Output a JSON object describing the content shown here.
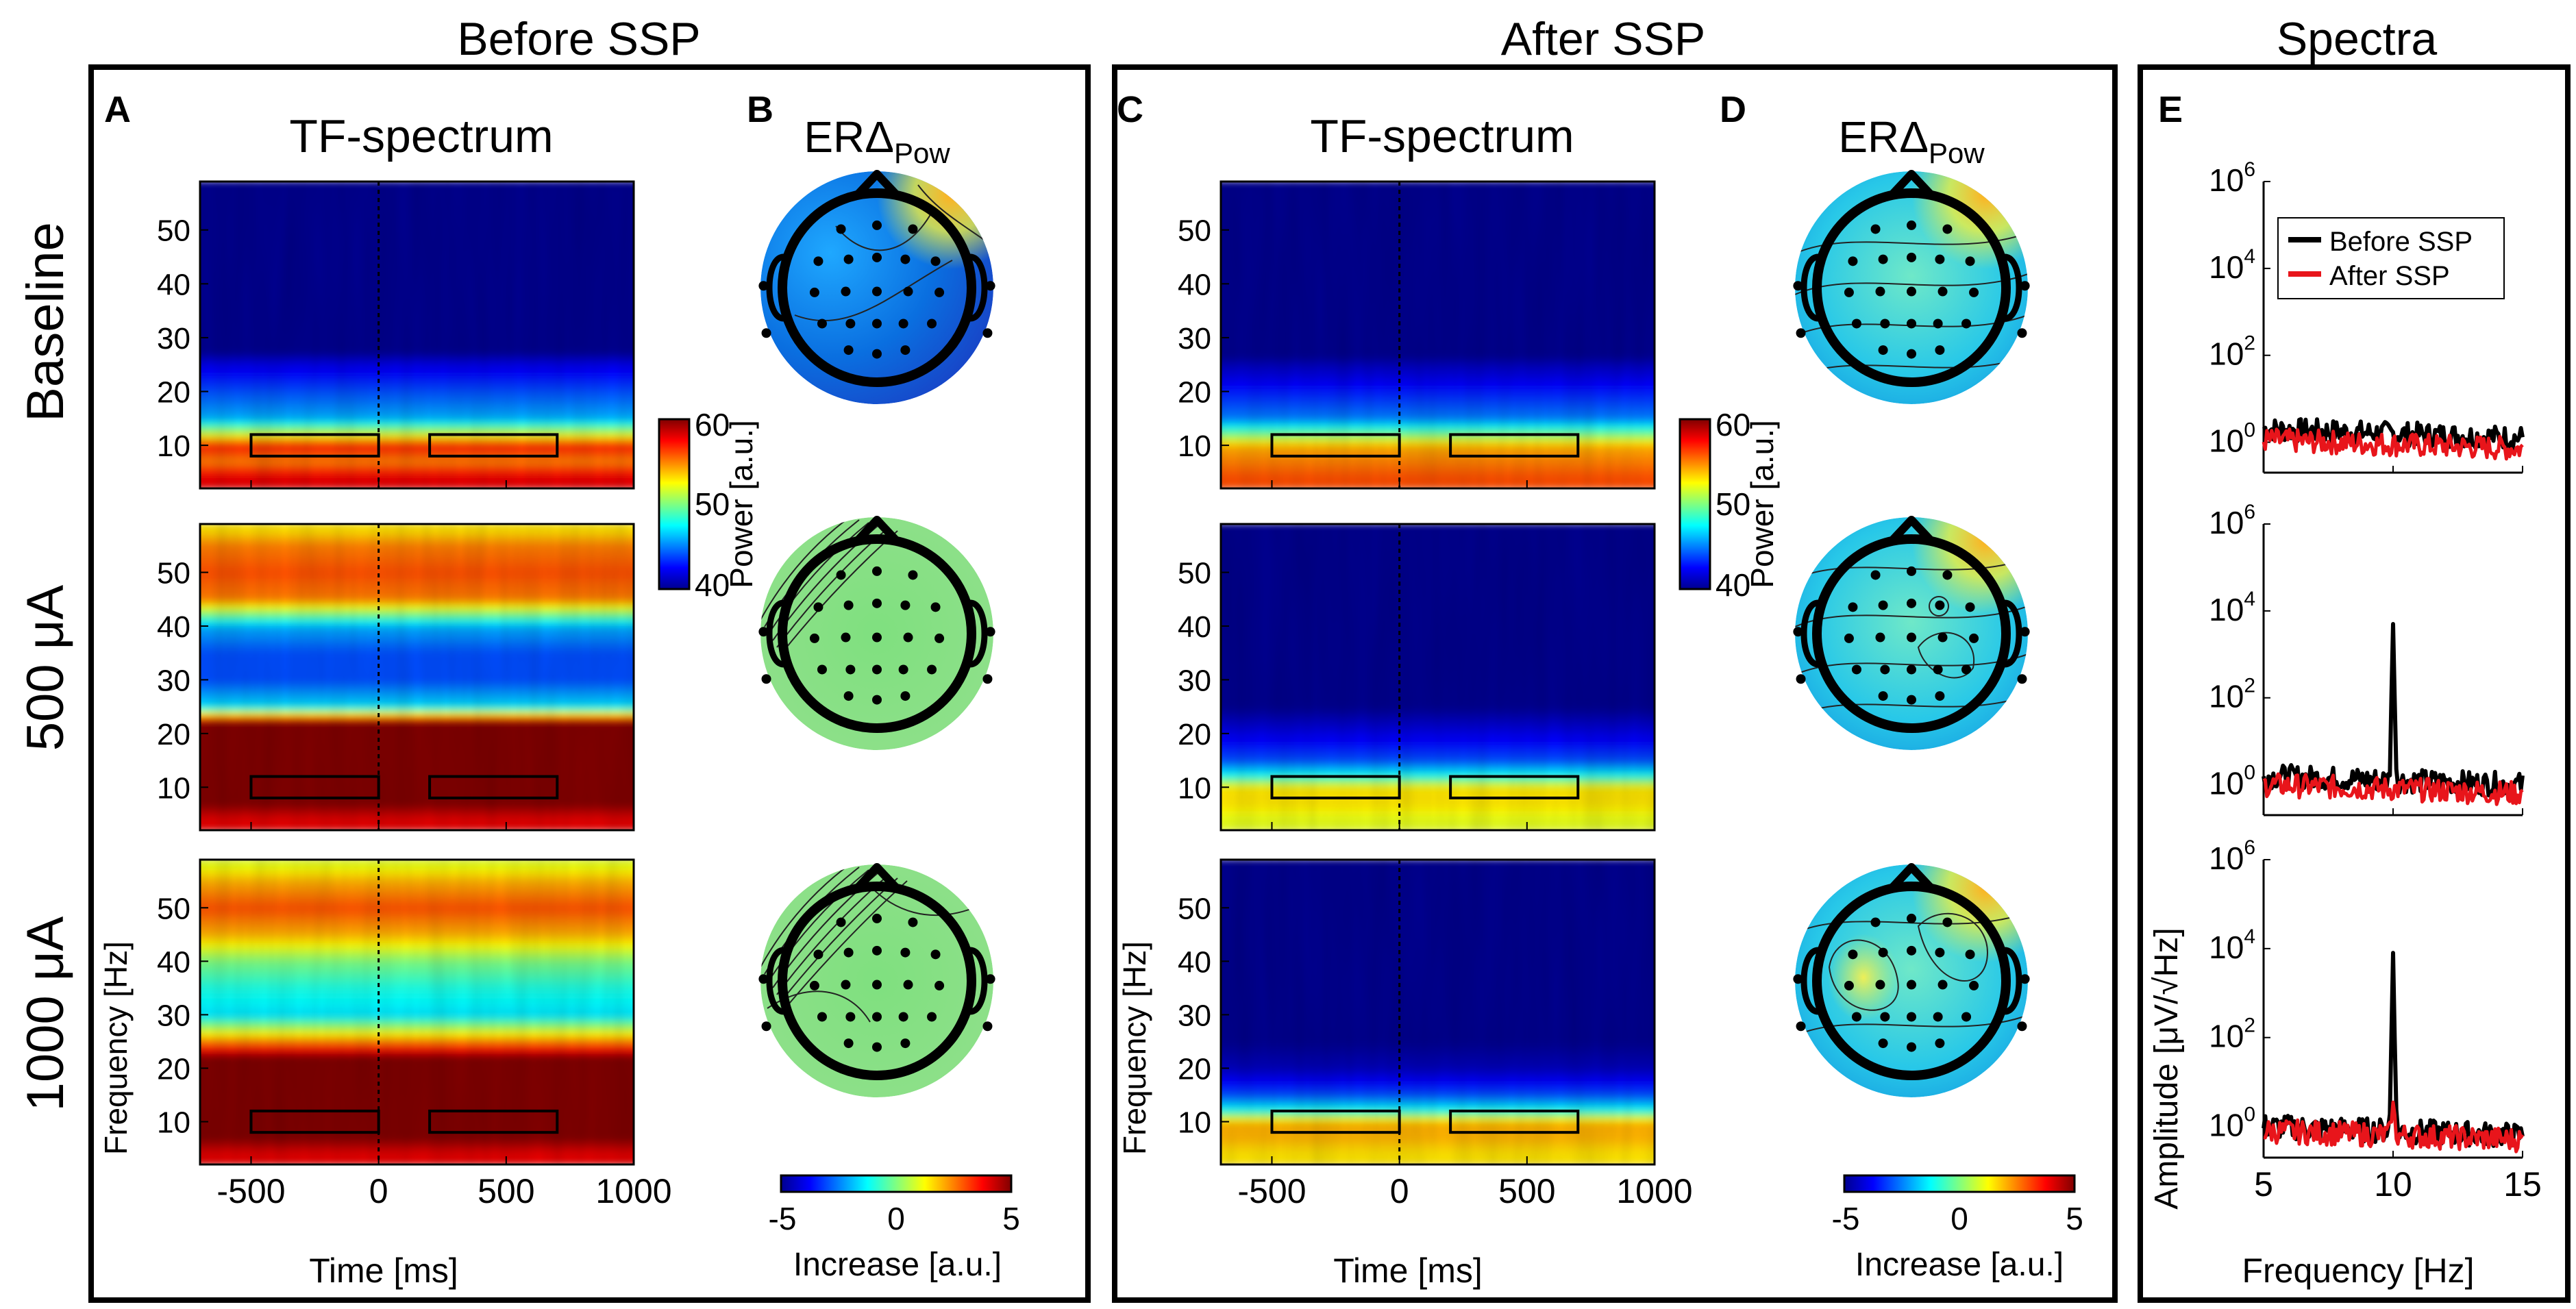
{
  "sections": {
    "before": "Before SSP",
    "after": "After SSP",
    "spectra": "Spectra"
  },
  "panels": {
    "A": "A",
    "B": "B",
    "C": "C",
    "D": "D",
    "E": "E"
  },
  "tf_title": "TF-spectrum",
  "erd_title": {
    "main": "ERΔ",
    "sub": "Pow"
  },
  "rows": [
    "Baseline",
    "500 μA",
    "1000 μA"
  ],
  "colors": {
    "frame": "#000000",
    "before_line": "#000000",
    "after_line": "#e8151b",
    "jet": [
      "#00008f",
      "#0000ff",
      "#0080ff",
      "#00ffff",
      "#80ff80",
      "#ffff00",
      "#ff8000",
      "#ff0000",
      "#800000"
    ]
  },
  "chart_data": [
    {
      "type": "heatmap",
      "title": "TF-spectrum",
      "panels": "A (Before SSP) and C (After SSP)",
      "xlabel": "Time [ms]",
      "ylabel": "Frequency [Hz]",
      "xlim": [
        -700,
        1000
      ],
      "ylim": [
        2,
        59
      ],
      "xticks": [
        -500,
        0,
        500,
        1000
      ],
      "xtick_labels": [
        "-500",
        "0",
        "500",
        "1000"
      ],
      "yticks": [
        10,
        20,
        30,
        40,
        50
      ],
      "ytick_labels": [
        "10",
        "20",
        "30",
        "40",
        "50"
      ],
      "event_marker_ms": 0,
      "analysis_windows_ms": [
        [
          -500,
          0
        ],
        [
          200,
          700
        ]
      ],
      "analysis_band_hz": [
        8,
        12
      ],
      "colorbar": {
        "label": "Power [a.u.]",
        "range": [
          40,
          60
        ],
        "ticks": [
          40,
          50,
          60
        ],
        "tick_labels": [
          "40",
          "50",
          "60"
        ]
      },
      "profiles_before": [
        [
          [
            4,
            58
          ],
          [
            7,
            55
          ],
          [
            10,
            57
          ],
          [
            12,
            52
          ],
          [
            15,
            46
          ],
          [
            20,
            44
          ],
          [
            25,
            42
          ],
          [
            30,
            38
          ],
          [
            35,
            35
          ],
          [
            40,
            33
          ],
          [
            50,
            31
          ],
          [
            58,
            30
          ]
        ],
        [
          [
            4,
            58
          ],
          [
            7,
            60
          ],
          [
            10,
            60
          ],
          [
            15,
            60
          ],
          [
            20,
            60
          ],
          [
            22,
            60
          ],
          [
            25,
            47
          ],
          [
            30,
            44
          ],
          [
            35,
            44
          ],
          [
            40,
            46
          ],
          [
            45,
            55
          ],
          [
            50,
            56
          ],
          [
            55,
            55
          ],
          [
            58,
            53
          ]
        ],
        [
          [
            4,
            58
          ],
          [
            7,
            60
          ],
          [
            10,
            60
          ],
          [
            15,
            60
          ],
          [
            20,
            60
          ],
          [
            22,
            60
          ],
          [
            25,
            55
          ],
          [
            30,
            47
          ],
          [
            35,
            48
          ],
          [
            40,
            50
          ],
          [
            45,
            54
          ],
          [
            50,
            56
          ],
          [
            55,
            54
          ],
          [
            58,
            52
          ]
        ]
      ],
      "profiles_after": [
        [
          [
            4,
            56
          ],
          [
            7,
            55
          ],
          [
            10,
            54
          ],
          [
            12,
            50
          ],
          [
            15,
            45
          ],
          [
            20,
            43
          ],
          [
            25,
            41
          ],
          [
            30,
            38
          ],
          [
            35,
            35
          ],
          [
            40,
            33
          ],
          [
            50,
            31
          ],
          [
            58,
            30
          ]
        ],
        [
          [
            4,
            52
          ],
          [
            7,
            53
          ],
          [
            10,
            53
          ],
          [
            12,
            48
          ],
          [
            15,
            44
          ],
          [
            20,
            42
          ],
          [
            25,
            40
          ],
          [
            30,
            38
          ],
          [
            35,
            37
          ],
          [
            40,
            36
          ],
          [
            50,
            36
          ],
          [
            58,
            36
          ]
        ],
        [
          [
            4,
            53
          ],
          [
            7,
            54
          ],
          [
            10,
            54
          ],
          [
            12,
            48
          ],
          [
            15,
            44
          ],
          [
            20,
            41
          ],
          [
            25,
            40
          ],
          [
            30,
            38
          ],
          [
            35,
            36
          ],
          [
            40,
            35
          ],
          [
            50,
            35
          ],
          [
            58,
            35
          ]
        ]
      ]
    },
    {
      "type": "heatmap",
      "title": "ERΔPow",
      "panels": "B (Before SSP) and D (After SSP)",
      "colorbar": {
        "label": "Increase [a.u.]",
        "range": [
          -5,
          5
        ],
        "ticks": [
          -5,
          0,
          5
        ],
        "tick_labels": [
          "-5",
          "0",
          "5"
        ]
      }
    },
    {
      "type": "line",
      "title": "Spectra",
      "panels": "E",
      "xlabel": "Frequency [Hz]",
      "ylabel": "Amplitude [μV/√Hz]",
      "xlim": [
        5,
        15
      ],
      "xticks": [
        5,
        10,
        15
      ],
      "xtick_labels": [
        "5",
        "10",
        "15"
      ],
      "ylog10_range": [
        -0.7,
        6
      ],
      "yticks_log10": [
        0,
        2,
        4,
        6
      ],
      "ytick_labels": [
        {
          "base": "10",
          "exp": "0"
        },
        {
          "base": "10",
          "exp": "2"
        },
        {
          "base": "10",
          "exp": "4"
        },
        {
          "base": "10",
          "exp": "6"
        }
      ],
      "legend": [
        "Before SSP",
        "After SSP"
      ],
      "legend_position": "top-right",
      "series": [
        {
          "name": "Before SSP",
          "condition": "Baseline",
          "peak_freq_hz": null,
          "peak_value": null,
          "baseline_log10": 0.3
        },
        {
          "name": "After SSP",
          "condition": "Baseline",
          "peak_freq_hz": null,
          "peak_value": null,
          "baseline_log10": 0.05
        },
        {
          "name": "Before SSP",
          "condition": "500 μA",
          "peak_freq_hz": 10,
          "peak_value": 5000,
          "baseline_log10": 0.2
        },
        {
          "name": "After SSP",
          "condition": "500 μA",
          "peak_freq_hz": null,
          "peak_value": null,
          "baseline_log10": 0.0
        },
        {
          "name": "Before SSP",
          "condition": "1000 μA",
          "peak_freq_hz": 10,
          "peak_value": 8000,
          "baseline_log10": 0.0
        },
        {
          "name": "After SSP",
          "condition": "1000 μA",
          "peak_freq_hz": 10,
          "peak_value": 3.5,
          "baseline_log10": -0.1
        }
      ]
    }
  ]
}
